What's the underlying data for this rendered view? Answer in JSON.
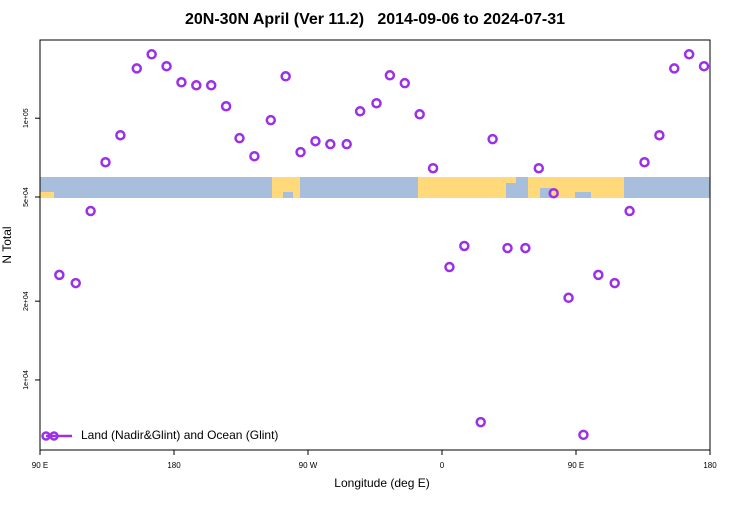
{
  "chart_data": {
    "type": "scatter",
    "title": "20N-30N April (Ver 11.2)   2014-09-06 to 2024-07-31",
    "x_label": "Longitude (deg E)",
    "y_label": "N Total",
    "x": [
      103,
      114,
      124,
      134,
      144,
      155,
      165,
      175,
      185,
      195,
      205,
      215,
      224,
      234,
      245,
      255,
      265,
      275,
      285,
      296,
      305,
      316,
      325,
      335,
      345,
      354,
      365,
      375,
      386,
      394,
      404,
      416,
      425,
      435,
      445,
      455,
      465,
      476,
      486,
      496,
      506,
      516,
      526,
      536
    ],
    "series": [
      {
        "name": "Land (Nadir&Glint) and Ocean (Glint)",
        "color": "#9b30e6",
        "values": [
          25200,
          23450,
          44200,
          67900,
          86100,
          155000,
          175500,
          158000,
          137200,
          133600,
          133600,
          111100,
          83900,
          71600,
          98300,
          144600,
          74200,
          81700,
          79600,
          79600,
          106300,
          114100,
          145900,
          136100,
          103500,
          64400,
          27000,
          32500,
          6900,
          83200,
          31900,
          31900,
          64400,
          51700,
          20600,
          6170,
          25200,
          23450,
          44200,
          67900,
          86100,
          155000,
          175500,
          158000
        ]
      }
    ],
    "xlim": [
      90,
      540
    ],
    "xticks": [
      {
        "value": 90,
        "label": "90 E"
      },
      180,
      {
        "value": 270,
        "label": "90 W"
      },
      0,
      {
        "value": 450,
        "label": "90 E"
      },
      {
        "value": 540,
        "label": "180"
      }
    ],
    "ylim": [
      5400,
      199000
    ],
    "log_y": true,
    "yticks": [
      {
        "value": 10000,
        "label": "1e+04"
      },
      {
        "value": 20000,
        "label": "2e+04"
      },
      {
        "value": 50000,
        "label": "5e+04"
      },
      {
        "value": 100000,
        "label": "1e+05"
      }
    ],
    "legend": "bottom-left"
  }
}
